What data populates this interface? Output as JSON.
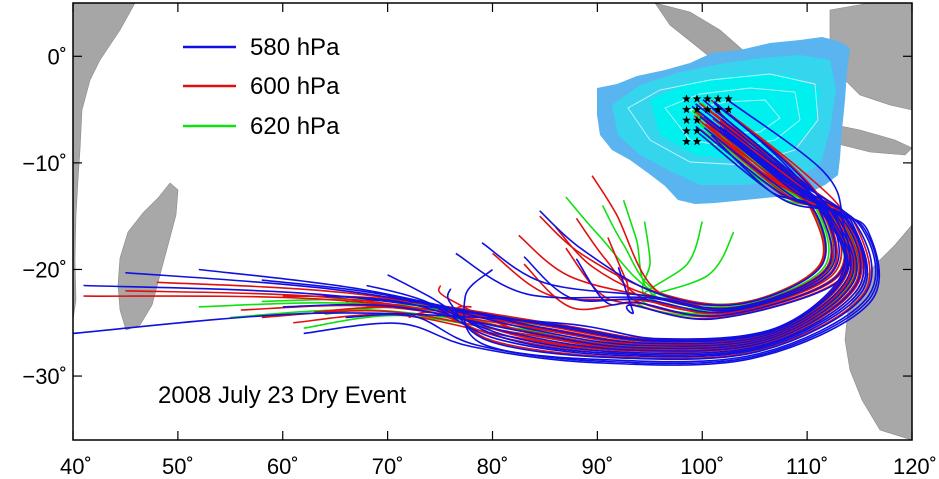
{
  "map": {
    "event_title": "2008 July 23 Dry Event",
    "lon_range": [
      40,
      120
    ],
    "lat_range": [
      -36,
      5
    ],
    "lon_ticks": [
      {
        "value": 40,
        "label": "40˚"
      },
      {
        "value": 50,
        "label": "50˚"
      },
      {
        "value": 60,
        "label": "60˚"
      },
      {
        "value": 70,
        "label": "70˚"
      },
      {
        "value": 80,
        "label": "80˚"
      },
      {
        "value": 90,
        "label": "90˚"
      },
      {
        "value": 100,
        "label": "100˚"
      },
      {
        "value": 110,
        "label": "110˚"
      },
      {
        "value": 120,
        "label": "120˚"
      }
    ],
    "lat_ticks": [
      {
        "value": 0,
        "label": "0˚"
      },
      {
        "value": -10,
        "label": "−10˚"
      },
      {
        "value": -20,
        "label": "−20˚"
      },
      {
        "value": -30,
        "label": "−30˚"
      }
    ],
    "legend": [
      {
        "label": "580 hPa",
        "color": "#1010e0"
      },
      {
        "label": "600 hPa",
        "color": "#e01010"
      },
      {
        "label": "620 hPa",
        "color": "#10e010"
      }
    ],
    "background_color": "#ffffff",
    "land_color": "#a8a8a8",
    "source_region_colors": [
      "#5ab4f0",
      "#35d5ee",
      "#00f0f0"
    ],
    "marker_icon": "star-marker-icon"
  },
  "chart_data": {
    "type": "trajectory-map",
    "start_points_lon": [
      98.5,
      99.5,
      100.5,
      101.5,
      102.5
    ],
    "start_points_lat": [
      -4,
      -5,
      -6,
      -7,
      -8
    ],
    "trajectories": [
      {
        "level": "580 hPa",
        "count": 20
      },
      {
        "level": "600 hPa",
        "count": 22
      },
      {
        "level": "620 hPa",
        "count": 12
      }
    ]
  }
}
